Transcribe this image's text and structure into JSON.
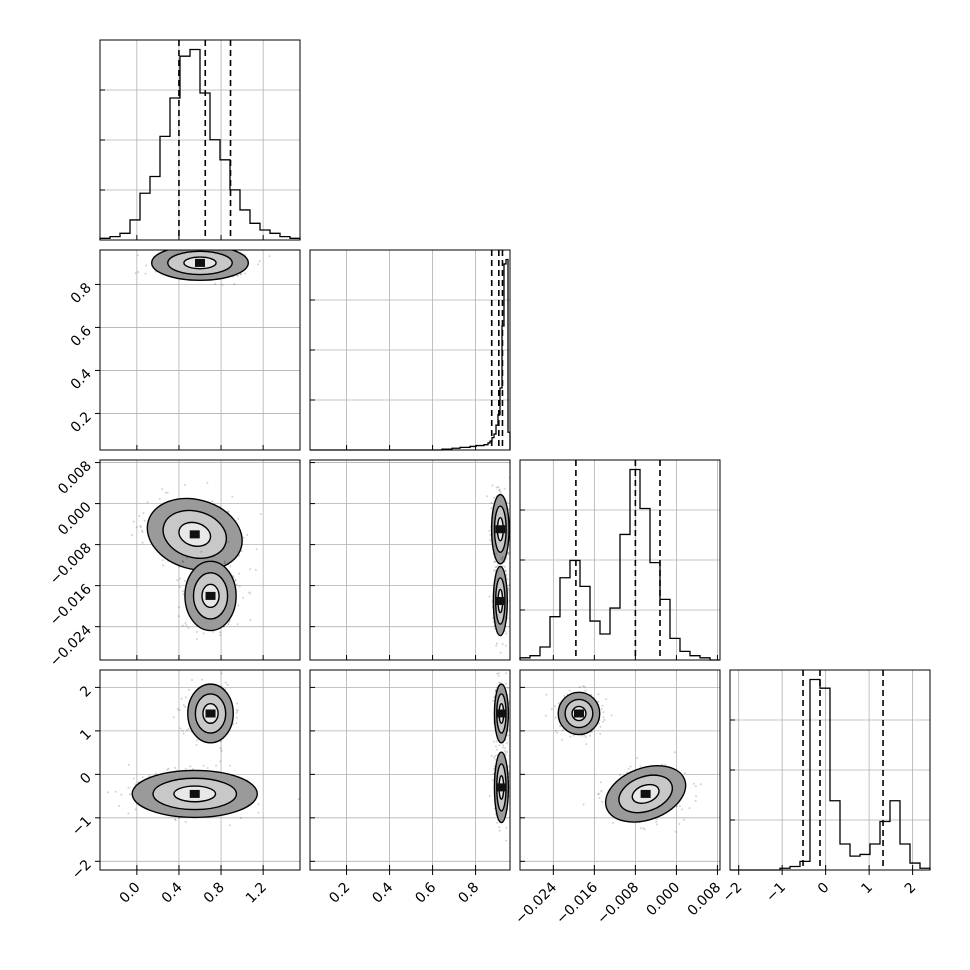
{
  "chart_data": {
    "type": "corner",
    "title": "",
    "parameters": [
      {
        "label": "",
        "range": [
          -0.35,
          1.55
        ],
        "ticks": [
          0.0,
          0.4,
          0.8,
          1.2
        ],
        "tick_labels": [
          "0.0",
          "0.4",
          "0.8",
          "1.2"
        ],
        "quantiles": [
          0.4,
          0.65,
          0.89
        ]
      },
      {
        "label": "",
        "range": [
          0.03,
          0.96
        ],
        "ticks": [
          0.2,
          0.4,
          0.6,
          0.8
        ],
        "tick_labels": [
          "0.2",
          "0.4",
          "0.6",
          "0.8"
        ],
        "quantiles": [
          0.875,
          0.908,
          0.925
        ]
      },
      {
        "label": "",
        "range": [
          -0.0305,
          0.0085
        ],
        "ticks": [
          -0.024,
          -0.016,
          -0.008,
          0.0,
          0.008
        ],
        "tick_labels": [
          "−0.024",
          "−0.016",
          "−0.008",
          "0.000",
          "0.008"
        ],
        "quantiles": [
          -0.0196,
          -0.008,
          -0.0032
        ]
      },
      {
        "label": "",
        "range": [
          -2.2,
          2.4
        ],
        "ticks": [
          -2,
          -1,
          0,
          1,
          2
        ],
        "tick_labels": [
          "−2",
          "−1",
          "0",
          "1",
          "2"
        ],
        "quantiles": [
          -0.52,
          -0.13,
          1.32
        ]
      }
    ],
    "histograms": [
      {
        "param": 0,
        "bins": [
          -0.35,
          1.55
        ],
        "counts": [
          1,
          2,
          4,
          12,
          28,
          38,
          62,
          85,
          110,
          114,
          88,
          60,
          48,
          30,
          18,
          10,
          6,
          4,
          2,
          1
        ]
      },
      {
        "param": 1,
        "bins": [
          0.03,
          0.96
        ],
        "counts": [
          0,
          0,
          0,
          0,
          0,
          0,
          0,
          0,
          0,
          0,
          0,
          0,
          0,
          0,
          0,
          0,
          0,
          0,
          0,
          0,
          0,
          0,
          0,
          0,
          0,
          0,
          0,
          0,
          0,
          0,
          0,
          0,
          0,
          0,
          0,
          0,
          0,
          0,
          0,
          0,
          0,
          0,
          0,
          0,
          0,
          0,
          0,
          0,
          0,
          0,
          0,
          0,
          0,
          0,
          0,
          0,
          0,
          0,
          0,
          0,
          0,
          0,
          0,
          0,
          0,
          0,
          1,
          1,
          1,
          1,
          1,
          2,
          2,
          2,
          2,
          3,
          3,
          3,
          3,
          3,
          4,
          4,
          4,
          5,
          5,
          5,
          5,
          6,
          6,
          8,
          10,
          14,
          18,
          28,
          40,
          70,
          140,
          210,
          215,
          20
        ]
      },
      {
        "param": 2,
        "bins": [
          -0.0305,
          0.0085
        ],
        "counts": [
          1,
          2,
          6,
          20,
          38,
          46,
          34,
          18,
          12,
          24,
          58,
          88,
          70,
          45,
          28,
          10,
          4,
          2,
          1,
          0
        ]
      },
      {
        "param": 3,
        "bins": [
          -2.2,
          2.4
        ],
        "counts": [
          0,
          0,
          0,
          0,
          0,
          1,
          2,
          5,
          110,
          105,
          40,
          15,
          8,
          9,
          15,
          28,
          40,
          15,
          4,
          1
        ]
      }
    ],
    "modes_2d": [
      {
        "x": 0,
        "y": 1,
        "peaks": [
          {
            "x": 0.6,
            "y": 0.9
          }
        ]
      },
      {
        "x": 0,
        "y": 2,
        "peaks": [
          {
            "x": 0.55,
            "y": -0.006
          },
          {
            "x": 0.7,
            "y": -0.018
          }
        ]
      },
      {
        "x": 0,
        "y": 3,
        "peaks": [
          {
            "x": 0.7,
            "y": 1.4
          },
          {
            "x": 0.55,
            "y": -0.45
          }
        ]
      },
      {
        "x": 1,
        "y": 2,
        "peaks": [
          {
            "x": 0.915,
            "y": -0.005
          },
          {
            "x": 0.915,
            "y": -0.019
          }
        ]
      },
      {
        "x": 1,
        "y": 3,
        "peaks": [
          {
            "x": 0.92,
            "y": 1.4
          },
          {
            "x": 0.92,
            "y": -0.3
          }
        ]
      },
      {
        "x": 2,
        "y": 3,
        "peaks": [
          {
            "x": -0.019,
            "y": 1.4
          },
          {
            "x": -0.006,
            "y": -0.45
          }
        ]
      }
    ],
    "grid": true,
    "quantile_lines": "dashed"
  }
}
